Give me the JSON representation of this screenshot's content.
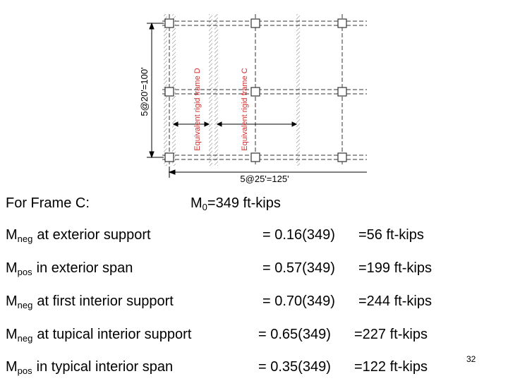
{
  "diagram": {
    "height_label": "5@20'=100'",
    "width_label": "5@25'=125'",
    "strip_labels": [
      "Equivalent rigid frame D",
      "Equivalent rigid frame C"
    ]
  },
  "header": {
    "frame": "For Frame C:",
    "moment": {
      "symbol": "M",
      "subscript": "0",
      "text": "=349 ft-kips"
    }
  },
  "rows": [
    {
      "symbol": "M",
      "subscript": "neg",
      "text": "at exterior support",
      "equation": "= 0.16(349)",
      "result": "=56 ft-kips"
    },
    {
      "symbol": "M",
      "subscript": "pos",
      "text": "in exterior span",
      "equation": "= 0.57(349)",
      "result": "=199 ft-kips"
    },
    {
      "symbol": "M",
      "subscript": "neg",
      "text": "at first interior support",
      "equation": "= 0.70(349)",
      "result": "=244 ft-kips"
    },
    {
      "symbol": "M",
      "subscript": "neg",
      "text": "at tupical interior support",
      "equation": "= 0.65(349)",
      "result": "=227 ft-kips"
    },
    {
      "symbol": "M",
      "subscript": "pos",
      "text": "in typical interior span",
      "equation": "= 0.35(349)",
      "result": "=122 ft-kips"
    }
  ],
  "page_number": "32"
}
